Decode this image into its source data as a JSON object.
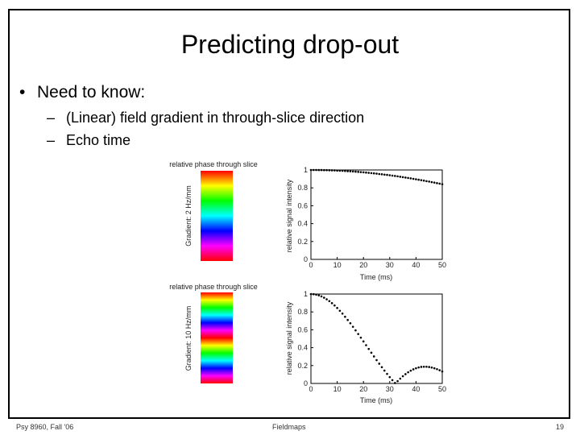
{
  "slide": {
    "title": "Predicting drop-out",
    "bullet": "Need to know:",
    "sub_bullets": [
      "(Linear) field gradient in through-slice direction",
      "Echo time"
    ]
  },
  "panels": [
    {
      "colorbar_title": "relative phase through slice",
      "colorbar_label": "Gradient: 2 Hz/mm",
      "cycles": 1
    },
    {
      "colorbar_title": "relative phase through slice",
      "colorbar_label": "Gradient: 10 Hz/mm",
      "cycles": 2
    }
  ],
  "chart_data": [
    {
      "type": "scatter",
      "xlabel": "Time (ms)",
      "ylabel": "relative signal intensity",
      "xlim": [
        0,
        50
      ],
      "ylim": [
        0,
        1
      ],
      "xticks": [
        "0",
        "10",
        "20",
        "30",
        "40",
        "50"
      ],
      "yticks": [
        "0",
        "0.2",
        "0.4",
        "0.6",
        "0.8",
        "1"
      ],
      "gradient_hz_per_mm": 2,
      "x": [
        0,
        1,
        2,
        3,
        4,
        5,
        6,
        7,
        8,
        9,
        10,
        11,
        12,
        13,
        14,
        15,
        16,
        17,
        18,
        19,
        20,
        21,
        22,
        23,
        24,
        25,
        26,
        27,
        28,
        29,
        30,
        31,
        32,
        33,
        34,
        35,
        36,
        37,
        38,
        39,
        40,
        41,
        42,
        43,
        44,
        45,
        46,
        47,
        48,
        49,
        50
      ],
      "y": [
        1.0,
        1.0,
        1.0,
        0.999,
        0.999,
        0.998,
        0.998,
        0.997,
        0.996,
        0.995,
        0.993,
        0.992,
        0.991,
        0.989,
        0.987,
        0.985,
        0.983,
        0.981,
        0.979,
        0.976,
        0.974,
        0.971,
        0.968,
        0.965,
        0.962,
        0.959,
        0.955,
        0.952,
        0.948,
        0.945,
        0.941,
        0.937,
        0.933,
        0.929,
        0.924,
        0.92,
        0.915,
        0.911,
        0.906,
        0.901,
        0.896,
        0.891,
        0.886,
        0.881,
        0.875,
        0.87,
        0.864,
        0.859,
        0.853,
        0.847,
        0.841
      ]
    },
    {
      "type": "scatter",
      "xlabel": "Time (ms)",
      "ylabel": "relative signal intensity",
      "xlim": [
        0,
        50
      ],
      "ylim": [
        0,
        1
      ],
      "xticks": [
        "0",
        "10",
        "20",
        "30",
        "40",
        "50"
      ],
      "yticks": [
        "0",
        "0.2",
        "0.4",
        "0.6",
        "0.8",
        "1"
      ],
      "gradient_hz_per_mm": 10,
      "x": [
        0,
        1,
        2,
        3,
        4,
        5,
        6,
        7,
        8,
        9,
        10,
        11,
        12,
        13,
        14,
        15,
        16,
        17,
        18,
        19,
        20,
        21,
        22,
        23,
        24,
        25,
        26,
        27,
        28,
        29,
        30,
        31,
        32,
        33,
        34,
        35,
        36,
        37,
        38,
        39,
        40,
        41,
        42,
        43,
        44,
        45,
        46,
        47,
        48,
        49,
        50
      ],
      "y": [
        1.0,
        0.998,
        0.993,
        0.985,
        0.974,
        0.959,
        0.941,
        0.921,
        0.898,
        0.872,
        0.844,
        0.813,
        0.781,
        0.746,
        0.71,
        0.673,
        0.634,
        0.594,
        0.553,
        0.512,
        0.47,
        0.428,
        0.386,
        0.344,
        0.302,
        0.261,
        0.221,
        0.182,
        0.144,
        0.107,
        0.071,
        0.037,
        0.005,
        0.026,
        0.054,
        0.081,
        0.104,
        0.125,
        0.143,
        0.158,
        0.17,
        0.179,
        0.185,
        0.187,
        0.187,
        0.184,
        0.178,
        0.17,
        0.16,
        0.148,
        0.134
      ]
    }
  ],
  "footer": {
    "left": "Psy 8960, Fall '06",
    "center": "Fieldmaps",
    "page": "19"
  }
}
